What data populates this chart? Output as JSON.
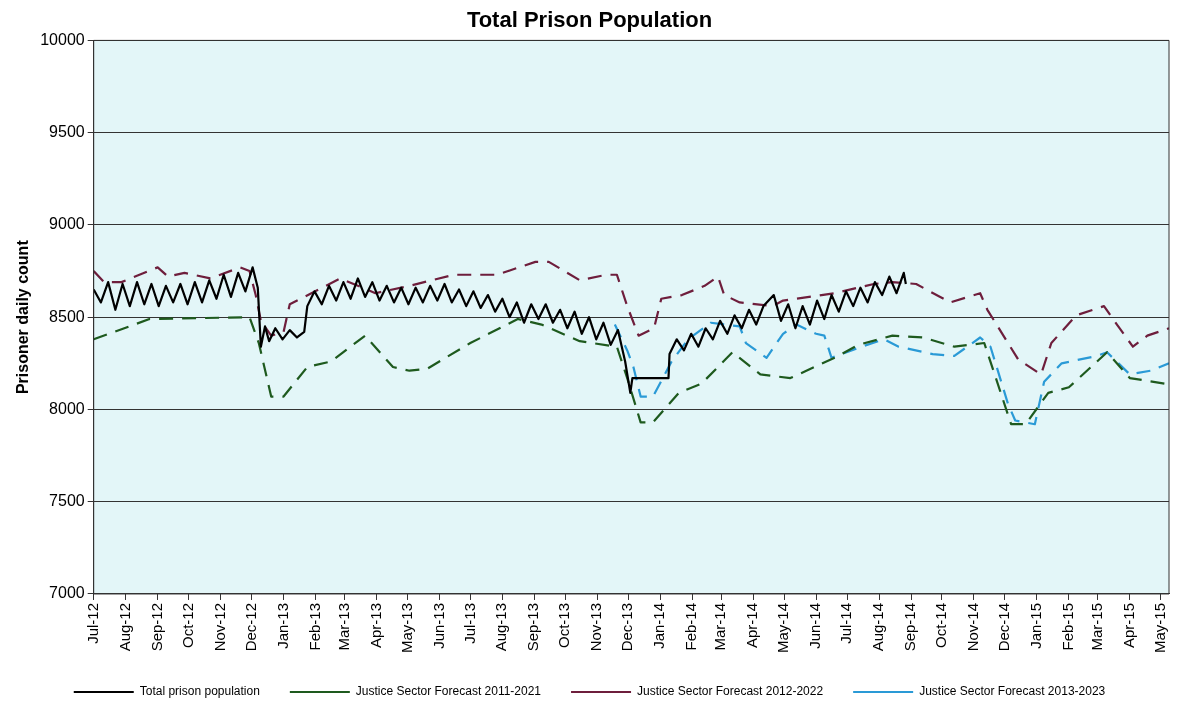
{
  "chart_data": {
    "type": "line",
    "title": "Total Prison Population",
    "ylabel": "Prisoner daily count",
    "xlim": [
      "2012-07-01",
      "2015-05-09"
    ],
    "xticks": [
      {
        "value": "2012-07-01",
        "label": "Jul-12"
      },
      {
        "value": "2012-08-01",
        "label": "Aug-12"
      },
      {
        "value": "2012-09-01",
        "label": "Sep-12"
      },
      {
        "value": "2012-10-01",
        "label": "Oct-12"
      },
      {
        "value": "2012-11-01",
        "label": "Nov-12"
      },
      {
        "value": "2012-12-01",
        "label": "Dec-12"
      },
      {
        "value": "2013-01-01",
        "label": "Jan-13"
      },
      {
        "value": "2013-02-01",
        "label": "Feb-13"
      },
      {
        "value": "2013-03-01",
        "label": "Mar-13"
      },
      {
        "value": "2013-04-01",
        "label": "Apr-13"
      },
      {
        "value": "2013-05-01",
        "label": "May-13"
      },
      {
        "value": "2013-06-01",
        "label": "Jun-13"
      },
      {
        "value": "2013-07-01",
        "label": "Jul-13"
      },
      {
        "value": "2013-08-01",
        "label": "Aug-13"
      },
      {
        "value": "2013-09-01",
        "label": "Sep-13"
      },
      {
        "value": "2013-10-01",
        "label": "Oct-13"
      },
      {
        "value": "2013-11-01",
        "label": "Nov-13"
      },
      {
        "value": "2013-12-01",
        "label": "Dec-13"
      },
      {
        "value": "2014-01-01",
        "label": "Jan-14"
      },
      {
        "value": "2014-02-01",
        "label": "Feb-14"
      },
      {
        "value": "2014-03-01",
        "label": "Mar-14"
      },
      {
        "value": "2014-04-01",
        "label": "Apr-14"
      },
      {
        "value": "2014-05-01",
        "label": "May-14"
      },
      {
        "value": "2014-06-01",
        "label": "Jun-14"
      },
      {
        "value": "2014-07-01",
        "label": "Jul-14"
      },
      {
        "value": "2014-08-01",
        "label": "Aug-14"
      },
      {
        "value": "2014-09-01",
        "label": "Sep-14"
      },
      {
        "value": "2014-10-01",
        "label": "Oct-14"
      },
      {
        "value": "2014-11-01",
        "label": "Nov-14"
      },
      {
        "value": "2014-12-01",
        "label": "Dec-14"
      },
      {
        "value": "2015-01-01",
        "label": "Jan-15"
      },
      {
        "value": "2015-02-01",
        "label": "Feb-15"
      },
      {
        "value": "2015-03-01",
        "label": "Mar-15"
      },
      {
        "value": "2015-04-01",
        "label": "Apr-15"
      },
      {
        "value": "2015-05-01",
        "label": "May-15"
      }
    ],
    "ylim": [
      7000,
      10000
    ],
    "yticks": [
      7000,
      7500,
      8000,
      8500,
      9000,
      9500,
      10000
    ],
    "grid": "y",
    "legend": "bottom",
    "marker": "none",
    "series": [
      {
        "name": "Total prison population",
        "color": "#000000",
        "line_style": "solid",
        "x": [
          "2012-07-01",
          "2012-07-08",
          "2012-07-15",
          "2012-07-22",
          "2012-07-29",
          "2012-08-05",
          "2012-08-12",
          "2012-08-19",
          "2012-08-26",
          "2012-09-02",
          "2012-09-09",
          "2012-09-16",
          "2012-09-23",
          "2012-09-30",
          "2012-10-07",
          "2012-10-14",
          "2012-10-21",
          "2012-10-28",
          "2012-11-04",
          "2012-11-11",
          "2012-11-18",
          "2012-11-25",
          "2012-12-02",
          "2012-12-07",
          "2012-12-10",
          "2012-12-14",
          "2012-12-18",
          "2012-12-24",
          "2012-12-31",
          "2013-01-07",
          "2013-01-14",
          "2013-01-21",
          "2013-01-24",
          "2013-01-31",
          "2013-02-07",
          "2013-02-14",
          "2013-02-21",
          "2013-02-28",
          "2013-03-07",
          "2013-03-14",
          "2013-03-21",
          "2013-03-28",
          "2013-04-04",
          "2013-04-11",
          "2013-04-18",
          "2013-04-25",
          "2013-05-02",
          "2013-05-09",
          "2013-05-16",
          "2013-05-23",
          "2013-05-30",
          "2013-06-06",
          "2013-06-13",
          "2013-06-20",
          "2013-06-27",
          "2013-07-04",
          "2013-07-11",
          "2013-07-18",
          "2013-07-25",
          "2013-08-01",
          "2013-08-08",
          "2013-08-15",
          "2013-08-22",
          "2013-08-29",
          "2013-09-05",
          "2013-09-12",
          "2013-09-19",
          "2013-09-26",
          "2013-10-03",
          "2013-10-10",
          "2013-10-17",
          "2013-10-24",
          "2013-10-31",
          "2013-11-07",
          "2013-11-14",
          "2013-11-21",
          "2013-11-28",
          "2013-12-03",
          "2013-12-05",
          "2014-01-09",
          "2014-01-10",
          "2014-01-17",
          "2014-01-24",
          "2014-01-31",
          "2014-02-07",
          "2014-02-14",
          "2014-02-21",
          "2014-02-28",
          "2014-03-07",
          "2014-03-14",
          "2014-03-21",
          "2014-03-28",
          "2014-04-04",
          "2014-04-11",
          "2014-04-21",
          "2014-04-28",
          "2014-05-05",
          "2014-05-12",
          "2014-05-19",
          "2014-05-26",
          "2014-06-02",
          "2014-06-09",
          "2014-06-16",
          "2014-06-23",
          "2014-06-30",
          "2014-07-07",
          "2014-07-14",
          "2014-07-21",
          "2014-07-28",
          "2014-08-04",
          "2014-08-11",
          "2014-08-18",
          "2014-08-25",
          "2014-08-27"
        ],
        "values": [
          8650,
          8580,
          8690,
          8540,
          8680,
          8560,
          8690,
          8570,
          8680,
          8560,
          8670,
          8580,
          8680,
          8570,
          8690,
          8580,
          8700,
          8600,
          8730,
          8610,
          8740,
          8640,
          8770,
          8660,
          8340,
          8450,
          8370,
          8440,
          8380,
          8430,
          8390,
          8420,
          8560,
          8640,
          8570,
          8670,
          8590,
          8690,
          8600,
          8710,
          8610,
          8690,
          8590,
          8670,
          8580,
          8660,
          8570,
          8660,
          8580,
          8670,
          8590,
          8680,
          8580,
          8650,
          8560,
          8640,
          8550,
          8620,
          8530,
          8600,
          8500,
          8580,
          8470,
          8570,
          8490,
          8570,
          8470,
          8540,
          8440,
          8530,
          8410,
          8500,
          8380,
          8470,
          8350,
          8430,
          8260,
          8090,
          8170,
          8170,
          8300,
          8380,
          8320,
          8410,
          8340,
          8440,
          8380,
          8480,
          8410,
          8510,
          8440,
          8540,
          8460,
          8560,
          8620,
          8480,
          8570,
          8440,
          8560,
          8460,
          8590,
          8490,
          8620,
          8530,
          8640,
          8560,
          8660,
          8580,
          8690,
          8620,
          8720,
          8630,
          8740,
          8680
        ]
      },
      {
        "name": "Justice Sector Forecast 2011-2021",
        "color": "#1e5a1e",
        "line_style": "dashed",
        "x": [
          "2012-07-01",
          "2012-08-24",
          "2012-11-29",
          "2012-12-08",
          "2012-12-20",
          "2013-01-01",
          "2013-01-24",
          "2013-02-16",
          "2013-03-21",
          "2013-04-17",
          "2013-05-03",
          "2013-05-20",
          "2013-07-01",
          "2013-08-16",
          "2013-09-08",
          "2013-10-15",
          "2013-11-20",
          "2013-11-30",
          "2013-12-13",
          "2013-12-25",
          "2014-01-19",
          "2014-02-10",
          "2014-03-12",
          "2014-04-08",
          "2014-05-07",
          "2014-06-19",
          "2014-07-12",
          "2014-08-14",
          "2014-09-13",
          "2014-10-13",
          "2014-11-11",
          "2014-12-07",
          "2014-12-21",
          "2015-01-12",
          "2015-02-01",
          "2015-03-10",
          "2015-04-01",
          "2015-05-05",
          "2015-05-09"
        ],
        "values": [
          8380,
          8490,
          8500,
          8360,
          8070,
          8070,
          8230,
          8260,
          8400,
          8230,
          8210,
          8220,
          8360,
          8490,
          8460,
          8370,
          8340,
          8170,
          7930,
          7930,
          8090,
          8140,
          8310,
          8190,
          8170,
          8280,
          8350,
          8400,
          8390,
          8340,
          8360,
          7920,
          7920,
          8090,
          8120,
          8310,
          8170,
          8140,
          8160
        ]
      },
      {
        "name": "Justice Sector Forecast 2012-2022",
        "color": "#6e1e3c",
        "line_style": "dashed",
        "x": [
          "2012-07-01",
          "2012-07-11",
          "2012-07-28",
          "2012-09-01",
          "2012-09-11",
          "2012-09-27",
          "2012-10-22",
          "2012-11-20",
          "2012-11-29",
          "2012-12-05",
          "2012-12-10",
          "2012-12-20",
          "2013-01-01",
          "2013-01-07",
          "2013-02-25",
          "2013-03-31",
          "2013-05-03",
          "2013-06-15",
          "2013-07-27",
          "2013-09-02",
          "2013-09-15",
          "2013-10-15",
          "2013-11-10",
          "2013-11-20",
          "2013-11-30",
          "2013-12-11",
          "2013-12-26",
          "2014-01-02",
          "2014-01-22",
          "2014-02-13",
          "2014-02-26",
          "2014-03-04",
          "2014-03-19",
          "2014-04-20",
          "2014-04-30",
          "2014-06-19",
          "2014-07-27",
          "2014-08-14",
          "2014-09-06",
          "2014-10-09",
          "2014-11-07",
          "2014-11-14",
          "2014-12-04",
          "2014-12-14",
          "2015-01-05",
          "2015-01-15",
          "2015-02-08",
          "2015-03-07",
          "2015-03-17",
          "2015-04-04",
          "2015-04-18",
          "2015-05-09"
        ],
        "values": [
          8750,
          8690,
          8690,
          8770,
          8720,
          8740,
          8710,
          8770,
          8750,
          8620,
          8480,
          8400,
          8420,
          8570,
          8710,
          8630,
          8670,
          8730,
          8730,
          8800,
          8800,
          8700,
          8730,
          8730,
          8560,
          8400,
          8440,
          8600,
          8620,
          8670,
          8720,
          8620,
          8580,
          8560,
          8590,
          8630,
          8680,
          8690,
          8680,
          8580,
          8630,
          8540,
          8360,
          8270,
          8190,
          8360,
          8510,
          8560,
          8480,
          8340,
          8400,
          8440
        ]
      },
      {
        "name": "Justice Sector Forecast 2013-2023",
        "color": "#2a9ad6",
        "line_style": "dashed",
        "x": [
          "2013-11-18",
          "2013-11-30",
          "2013-12-06",
          "2013-12-13",
          "2013-12-25",
          "2014-01-12",
          "2014-01-28",
          "2014-02-19",
          "2014-03-19",
          "2014-03-25",
          "2014-04-14",
          "2014-04-30",
          "2014-05-13",
          "2014-06-01",
          "2014-06-09",
          "2014-06-16",
          "2014-07-15",
          "2014-08-06",
          "2014-08-20",
          "2014-09-22",
          "2014-10-13",
          "2014-11-07",
          "2014-11-17",
          "2014-12-04",
          "2014-12-11",
          "2014-12-30",
          "2015-01-08",
          "2015-01-25",
          "2015-02-28",
          "2015-03-10",
          "2015-04-01",
          "2015-04-21",
          "2015-05-09"
        ],
        "values": [
          8460,
          8320,
          8230,
          8070,
          8070,
          8260,
          8380,
          8470,
          8450,
          8360,
          8280,
          8410,
          8460,
          8410,
          8400,
          8280,
          8340,
          8380,
          8340,
          8300,
          8290,
          8390,
          8340,
          8030,
          7940,
          7920,
          8150,
          8250,
          8290,
          8310,
          8190,
          8210,
          8250
        ]
      }
    ]
  }
}
